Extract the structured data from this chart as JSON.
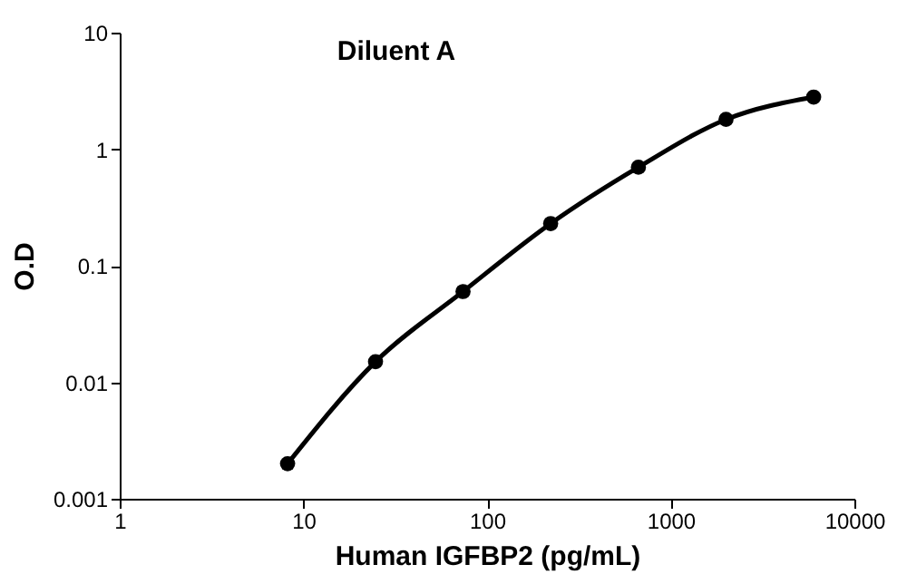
{
  "chart_data": {
    "type": "line",
    "title": "Diluent A",
    "xlabel": "Human IGFBP2 (pg/mL)",
    "ylabel": "O.D",
    "x": [
      8.2,
      24.7,
      74,
      222,
      667,
      2000,
      6000
    ],
    "series": [
      {
        "color": "#000000",
        "values": [
          0.002,
          0.015,
          0.06,
          0.23,
          0.7,
          1.8,
          2.8
        ]
      }
    ],
    "log": "xy",
    "xlim": [
      1,
      10000
    ],
    "ylim": [
      0.001,
      10
    ],
    "xticks": [
      1,
      10,
      100,
      1000,
      10000
    ],
    "yticks": [
      0.001,
      0.01,
      0.1,
      1,
      10
    ],
    "grid": false,
    "legend": false,
    "marker": "circle",
    "line_style": "solid"
  }
}
